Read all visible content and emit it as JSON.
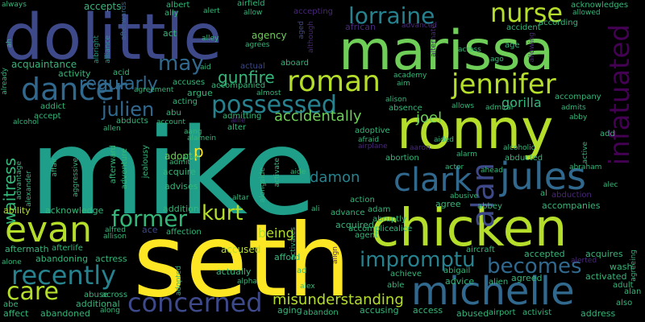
{
  "colors": {
    "background": "#000000",
    "yellow": "#fde725",
    "lime": "#b5de2b",
    "green": "#6ece58",
    "teal_green": "#35b779",
    "teal": "#1f9e89",
    "cyan_blue": "#26828e",
    "blue": "#31688e",
    "indigo": "#3e4989",
    "purple": "#482878",
    "dark_purple": "#440154"
  },
  "words": [
    {
      "text": "mike",
      "color": "#1f9e89"
    },
    {
      "text": "seth",
      "color": "#fde725"
    },
    {
      "text": "dolittle",
      "color": "#3e4989"
    },
    {
      "text": "marissa",
      "color": "#6ece58"
    },
    {
      "text": "ronny",
      "color": "#b5de2b"
    },
    {
      "text": "chicken",
      "color": "#b5de2b"
    },
    {
      "text": "michelle",
      "color": "#31688e"
    },
    {
      "text": "jennifer",
      "color": "#b5de2b"
    },
    {
      "text": "roman",
      "color": "#b5de2b"
    },
    {
      "text": "infatuated",
      "color": "#440154"
    },
    {
      "text": "possessed",
      "color": "#26828e"
    },
    {
      "text": "lorraine",
      "color": "#26828e"
    },
    {
      "text": "nurse",
      "color": "#b5de2b"
    },
    {
      "text": "dancer",
      "color": "#31688e"
    },
    {
      "text": "evan",
      "color": "#b5de2b"
    },
    {
      "text": "clark",
      "color": "#31688e"
    },
    {
      "text": "jules",
      "color": "#31688e"
    },
    {
      "text": "concerned",
      "color": "#3e4989"
    },
    {
      "text": "recently",
      "color": "#26828e"
    },
    {
      "text": "impromptu",
      "color": "#26828e"
    },
    {
      "text": "former",
      "color": "#35b779"
    },
    {
      "text": "becomes",
      "color": "#31688e"
    },
    {
      "text": "care",
      "color": "#b5de2b"
    },
    {
      "text": "kurt",
      "color": "#b5de2b"
    },
    {
      "text": "may",
      "color": "#31688e"
    },
    {
      "text": "julien",
      "color": "#31688e"
    },
    {
      "text": "regularly",
      "color": "#31688e"
    },
    {
      "text": "gunfire",
      "color": "#35b779"
    },
    {
      "text": "misunderstanding",
      "color": "#b5de2b"
    },
    {
      "text": "accidentally",
      "color": "#6ece58"
    },
    {
      "text": "waitress",
      "color": "#35b779"
    },
    {
      "text": "alan",
      "color": "#3e4989"
    },
    {
      "text": "damon",
      "color": "#26828e"
    },
    {
      "text": "joel",
      "color": "#6ece58"
    },
    {
      "text": "gorilla",
      "color": "#35b779"
    },
    {
      "text": "being",
      "color": "#b5de2b"
    },
    {
      "text": "accused",
      "color": "#b5de2b"
    },
    {
      "text": "adopt",
      "color": "#6ece58"
    },
    {
      "text": "p",
      "color": "#fde725"
    },
    {
      "text": "acquaintance",
      "color": "#35b779"
    },
    {
      "text": "accepts",
      "color": "#35b779"
    },
    {
      "text": "albert",
      "color": "#35b779"
    },
    {
      "text": "airfield",
      "color": "#35b779"
    },
    {
      "text": "alert",
      "color": "#35b779"
    },
    {
      "text": "allow",
      "color": "#35b779"
    },
    {
      "text": "accepting",
      "color": "#482878"
    },
    {
      "text": "acknowledges",
      "color": "#35b779"
    },
    {
      "text": "allowed",
      "color": "#35b779"
    },
    {
      "text": "always",
      "color": "#35b779"
    },
    {
      "text": "afterwards",
      "color": "#31688e"
    },
    {
      "text": "ally",
      "color": "#35b779"
    },
    {
      "text": "alley",
      "color": "#35b779"
    },
    {
      "text": "agency",
      "color": "#6ece58"
    },
    {
      "text": "aged",
      "color": "#3e4989"
    },
    {
      "text": "although",
      "color": "#482878"
    },
    {
      "text": "african",
      "color": "#482878"
    },
    {
      "text": "advanced",
      "color": "#482878"
    },
    {
      "text": "accident",
      "color": "#35b779"
    },
    {
      "text": "according",
      "color": "#35b779"
    },
    {
      "text": "age",
      "color": "#35b779"
    },
    {
      "text": "allowing",
      "color": "#482878"
    },
    {
      "text": "across",
      "color": "#35b779"
    },
    {
      "text": "ago",
      "color": "#35b779"
    },
    {
      "text": "act",
      "color": "#35b779"
    },
    {
      "text": "agrees",
      "color": "#35b779"
    },
    {
      "text": "albright",
      "color": "#1f9e89"
    },
    {
      "text": "alliance",
      "color": "#1f9e89"
    },
    {
      "text": "ah",
      "color": "#35b779"
    },
    {
      "text": "activity",
      "color": "#35b779"
    },
    {
      "text": "acid",
      "color": "#35b779"
    },
    {
      "text": "agreement",
      "color": "#35b779"
    },
    {
      "text": "aid",
      "color": "#35b779"
    },
    {
      "text": "actual",
      "color": "#3e4989"
    },
    {
      "text": "aboard",
      "color": "#35b779"
    },
    {
      "text": "academy",
      "color": "#35b779"
    },
    {
      "text": "aim",
      "color": "#35b779"
    },
    {
      "text": "accuses",
      "color": "#35b779"
    },
    {
      "text": "argue",
      "color": "#35b779"
    },
    {
      "text": "accompanied",
      "color": "#35b779"
    },
    {
      "text": "almost",
      "color": "#35b779"
    },
    {
      "text": "alison",
      "color": "#35b779"
    },
    {
      "text": "absence",
      "color": "#35b779"
    },
    {
      "text": "allows",
      "color": "#35b779"
    },
    {
      "text": "admiral",
      "color": "#35b779"
    },
    {
      "text": "admits",
      "color": "#35b779"
    },
    {
      "text": "accompany",
      "color": "#35b779"
    },
    {
      "text": "addict",
      "color": "#35b779"
    },
    {
      "text": "acting",
      "color": "#35b779"
    },
    {
      "text": "abu",
      "color": "#35b779"
    },
    {
      "text": "account",
      "color": "#35b779"
    },
    {
      "text": "admitting",
      "color": "#35b779"
    },
    {
      "text": "admit",
      "color": "#35b779"
    },
    {
      "text": "accept",
      "color": "#35b779"
    },
    {
      "text": "abducts",
      "color": "#35b779"
    },
    {
      "text": "alter",
      "color": "#35b779"
    },
    {
      "text": "allie",
      "color": "#482878"
    },
    {
      "text": "abby",
      "color": "#35b779"
    },
    {
      "text": "alcohol",
      "color": "#35b779"
    },
    {
      "text": "allen",
      "color": "#35b779"
    },
    {
      "text": "aang",
      "color": "#35b779"
    },
    {
      "text": "alamein",
      "color": "#35b779"
    },
    {
      "text": "add",
      "color": "#35b779"
    },
    {
      "text": "adoptive",
      "color": "#35b779"
    },
    {
      "text": "afraid",
      "color": "#35b779"
    },
    {
      "text": "aided",
      "color": "#35b779"
    },
    {
      "text": "abducted",
      "color": "#35b779"
    },
    {
      "text": "alcoholic",
      "color": "#35b779"
    },
    {
      "text": "abraham",
      "color": "#35b779"
    },
    {
      "text": "alive",
      "color": "#35b779"
    },
    {
      "text": "abortion",
      "color": "#35b779"
    },
    {
      "text": "airplane",
      "color": "#482878"
    },
    {
      "text": "aaron",
      "color": "#482878"
    },
    {
      "text": "alarm",
      "color": "#35b779"
    },
    {
      "text": "actor",
      "color": "#35b779"
    },
    {
      "text": "ahead",
      "color": "#35b779"
    },
    {
      "text": "acquire",
      "color": "#35b779"
    },
    {
      "text": "aide",
      "color": "#35b779"
    },
    {
      "text": "abusive",
      "color": "#35b779"
    },
    {
      "text": "action",
      "color": "#35b779"
    },
    {
      "text": "adam",
      "color": "#35b779"
    },
    {
      "text": "abruptly",
      "color": "#35b779"
    },
    {
      "text": "advises",
      "color": "#35b779"
    },
    {
      "text": "jealousy",
      "color": "#35b779"
    },
    {
      "text": "adventure",
      "color": "#35b779"
    },
    {
      "text": "afterward",
      "color": "#35b779"
    },
    {
      "text": "affair",
      "color": "#35b779"
    },
    {
      "text": "aggressive",
      "color": "#35b779"
    },
    {
      "text": "advantage",
      "color": "#35b779"
    },
    {
      "text": "alexander",
      "color": "#35b779"
    },
    {
      "text": "alongside",
      "color": "#35b779"
    },
    {
      "text": "activate",
      "color": "#35b779"
    },
    {
      "text": "abduction",
      "color": "#482878"
    },
    {
      "text": "alec",
      "color": "#35b779"
    },
    {
      "text": "active",
      "color": "#35b779"
    },
    {
      "text": "al",
      "color": "#35b779"
    },
    {
      "text": "ability",
      "color": "#b5de2b"
    },
    {
      "text": "acknowledge",
      "color": "#35b779"
    },
    {
      "text": "addition",
      "color": "#35b779"
    },
    {
      "text": "altar",
      "color": "#35b779"
    },
    {
      "text": "ali",
      "color": "#35b779"
    },
    {
      "text": "advance",
      "color": "#35b779"
    },
    {
      "text": "agree",
      "color": "#35b779"
    },
    {
      "text": "abbey",
      "color": "#35b779"
    },
    {
      "text": "accompanies",
      "color": "#35b779"
    },
    {
      "text": "accomplice",
      "color": "#35b779"
    },
    {
      "text": "alfred",
      "color": "#35b779"
    },
    {
      "text": "allison",
      "color": "#35b779"
    },
    {
      "text": "ace",
      "color": "#3e4989"
    },
    {
      "text": "affection",
      "color": "#35b779"
    },
    {
      "text": "acquired",
      "color": "#35b779"
    },
    {
      "text": "alice",
      "color": "#35b779"
    },
    {
      "text": "agent",
      "color": "#35b779"
    },
    {
      "text": "aftermath",
      "color": "#35b779"
    },
    {
      "text": "afterlife",
      "color": "#35b779"
    },
    {
      "text": "activates",
      "color": "#35b779"
    },
    {
      "text": "afford",
      "color": "#35b779"
    },
    {
      "text": "align",
      "color": "#482878"
    },
    {
      "text": "aircraft",
      "color": "#35b779"
    },
    {
      "text": "accepted",
      "color": "#35b779"
    },
    {
      "text": "acquires",
      "color": "#35b779"
    },
    {
      "text": "agreeing",
      "color": "#35b779"
    },
    {
      "text": "abandoning",
      "color": "#35b779"
    },
    {
      "text": "actress",
      "color": "#35b779"
    },
    {
      "text": "alone",
      "color": "#35b779"
    },
    {
      "text": "actually",
      "color": "#35b779"
    },
    {
      "text": "ad",
      "color": "#35b779"
    },
    {
      "text": "achieve",
      "color": "#35b779"
    },
    {
      "text": "abigail",
      "color": "#35b779"
    },
    {
      "text": "wash",
      "color": "#35b779"
    },
    {
      "text": "activated",
      "color": "#35b779"
    },
    {
      "text": "alerted",
      "color": "#482878"
    },
    {
      "text": "adult",
      "color": "#35b779"
    },
    {
      "text": "adopted",
      "color": "#35b779"
    },
    {
      "text": "alpha",
      "color": "#35b779"
    },
    {
      "text": "agreed",
      "color": "#35b779"
    },
    {
      "text": "able",
      "color": "#35b779"
    },
    {
      "text": "advice",
      "color": "#35b779"
    },
    {
      "text": "alien",
      "color": "#35b779"
    },
    {
      "text": "abe",
      "color": "#35b779"
    },
    {
      "text": "abuse",
      "color": "#35b779"
    },
    {
      "text": "additional",
      "color": "#35b779"
    },
    {
      "text": "across",
      "color": "#35b779"
    },
    {
      "text": "alex",
      "color": "#35b779"
    },
    {
      "text": "aging",
      "color": "#35b779"
    },
    {
      "text": "accusing",
      "color": "#35b779"
    },
    {
      "text": "access",
      "color": "#35b779"
    },
    {
      "text": "also",
      "color": "#35b779"
    },
    {
      "text": "alan",
      "color": "#35b779"
    },
    {
      "text": "affect",
      "color": "#35b779"
    },
    {
      "text": "abandoned",
      "color": "#35b779"
    },
    {
      "text": "along",
      "color": "#35b779"
    },
    {
      "text": "abandon",
      "color": "#35b779"
    },
    {
      "text": "abused",
      "color": "#35b779"
    },
    {
      "text": "airport",
      "color": "#35b779"
    },
    {
      "text": "activist",
      "color": "#35b779"
    },
    {
      "text": "address",
      "color": "#35b779"
    },
    {
      "text": "already",
      "color": "#35b779"
    },
    {
      "text": "alternate",
      "color": "#482878"
    }
  ]
}
